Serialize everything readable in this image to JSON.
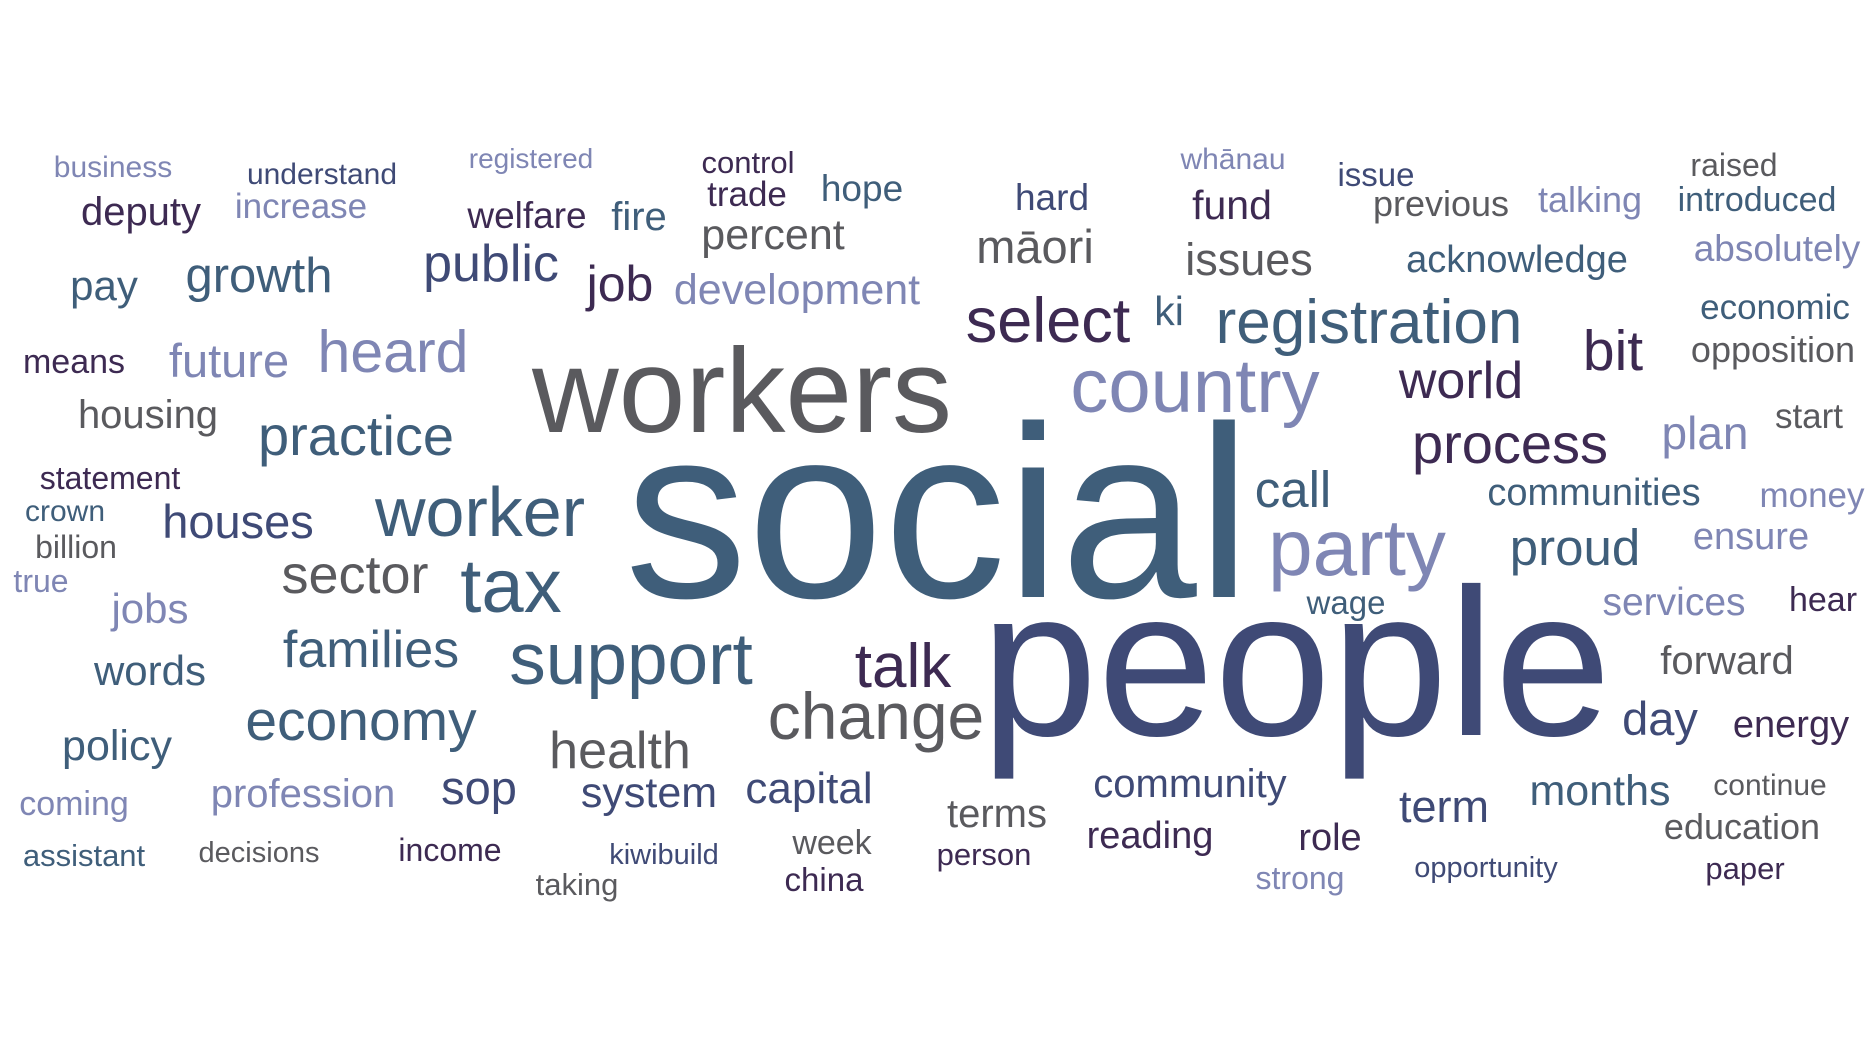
{
  "colors": {
    "dark_purple": "#3d2a52",
    "navy": "#3f4a76",
    "slate_blue": "#3f5e7a",
    "gray": "#5a5a5e",
    "lavender": "#7f86b4"
  },
  "words": [
    {
      "text": "social",
      "weight": 100,
      "color": "slate_blue"
    },
    {
      "text": "people",
      "weight": 96,
      "color": "navy"
    },
    {
      "text": "workers",
      "weight": 65,
      "color": "gray"
    },
    {
      "text": "party",
      "weight": 43,
      "color": "lavender"
    },
    {
      "text": "country",
      "weight": 40,
      "color": "lavender"
    },
    {
      "text": "support",
      "weight": 38,
      "color": "slate_blue"
    },
    {
      "text": "worker",
      "weight": 37,
      "color": "slate_blue"
    },
    {
      "text": "change",
      "weight": 36,
      "color": "gray"
    },
    {
      "text": "tax",
      "weight": 36,
      "color": "slate_blue"
    },
    {
      "text": "registration",
      "weight": 34,
      "color": "slate_blue"
    },
    {
      "text": "select",
      "weight": 34,
      "color": "dark_purple"
    },
    {
      "text": "talk",
      "weight": 33,
      "color": "dark_purple"
    },
    {
      "text": "economy",
      "weight": 31,
      "color": "slate_blue"
    },
    {
      "text": "process",
      "weight": 31,
      "color": "dark_purple"
    },
    {
      "text": "heard",
      "weight": 31,
      "color": "lavender"
    },
    {
      "text": "practice",
      "weight": 30,
      "color": "slate_blue"
    },
    {
      "text": "bit",
      "weight": 30,
      "color": "dark_purple"
    },
    {
      "text": "sector",
      "weight": 29,
      "color": "gray"
    },
    {
      "text": "families",
      "weight": 29,
      "color": "slate_blue"
    },
    {
      "text": "public",
      "weight": 29,
      "color": "navy"
    },
    {
      "text": "world",
      "weight": 29,
      "color": "dark_purple"
    },
    {
      "text": "health",
      "weight": 28,
      "color": "gray"
    },
    {
      "text": "proud",
      "weight": 28,
      "color": "slate_blue"
    },
    {
      "text": "call",
      "weight": 28,
      "color": "slate_blue"
    },
    {
      "text": "growth",
      "weight": 27,
      "color": "slate_blue"
    },
    {
      "text": "job",
      "weight": 27,
      "color": "dark_purple"
    },
    {
      "text": "houses",
      "weight": 27,
      "color": "navy"
    },
    {
      "text": "sop",
      "weight": 27,
      "color": "navy"
    },
    {
      "text": "māori",
      "weight": 26,
      "color": "gray"
    },
    {
      "text": "day",
      "weight": 26,
      "color": "navy"
    },
    {
      "text": "future",
      "weight": 26,
      "color": "lavender"
    },
    {
      "text": "plan",
      "weight": 26,
      "color": "lavender"
    },
    {
      "text": "capital",
      "weight": 25,
      "color": "navy"
    },
    {
      "text": "issues",
      "weight": 25,
      "color": "gray"
    },
    {
      "text": "system",
      "weight": 25,
      "color": "navy"
    },
    {
      "text": "term",
      "weight": 25,
      "color": "navy"
    },
    {
      "text": "months",
      "weight": 25,
      "color": "slate_blue"
    },
    {
      "text": "development",
      "weight": 24,
      "color": "lavender"
    },
    {
      "text": "percent",
      "weight": 24,
      "color": "gray"
    },
    {
      "text": "policy",
      "weight": 24,
      "color": "slate_blue"
    },
    {
      "text": "jobs",
      "weight": 24,
      "color": "lavender"
    },
    {
      "text": "pay",
      "weight": 24,
      "color": "slate_blue"
    },
    {
      "text": "words",
      "weight": 24,
      "color": "slate_blue"
    },
    {
      "text": "housing",
      "weight": 23,
      "color": "gray"
    },
    {
      "text": "community",
      "weight": 23,
      "color": "navy"
    },
    {
      "text": "profession",
      "weight": 23,
      "color": "lavender"
    },
    {
      "text": "forward",
      "weight": 23,
      "color": "gray"
    },
    {
      "text": "terms",
      "weight": 23,
      "color": "gray"
    },
    {
      "text": "fund",
      "weight": 23,
      "color": "dark_purple"
    },
    {
      "text": "acknowledge",
      "weight": 23,
      "color": "slate_blue"
    },
    {
      "text": "services",
      "weight": 23,
      "color": "lavender"
    },
    {
      "text": "fire",
      "weight": 23,
      "color": "slate_blue"
    },
    {
      "text": "deputy",
      "weight": 23,
      "color": "dark_purple"
    },
    {
      "text": "role",
      "weight": 22,
      "color": "dark_purple"
    },
    {
      "text": "reading",
      "weight": 22,
      "color": "dark_purple"
    },
    {
      "text": "hard",
      "weight": 22,
      "color": "navy"
    },
    {
      "text": "communities",
      "weight": 22,
      "color": "slate_blue"
    },
    {
      "text": "energy",
      "weight": 22,
      "color": "dark_purple"
    },
    {
      "text": "ensure",
      "weight": 22,
      "color": "lavender"
    },
    {
      "text": "welfare",
      "weight": 22,
      "color": "dark_purple"
    },
    {
      "text": "absolutely",
      "weight": 22,
      "color": "lavender"
    },
    {
      "text": "ki",
      "weight": 22,
      "color": "slate_blue"
    },
    {
      "text": "hope",
      "weight": 21,
      "color": "slate_blue"
    },
    {
      "text": "education",
      "weight": 21,
      "color": "gray"
    },
    {
      "text": "economic",
      "weight": 21,
      "color": "slate_blue"
    },
    {
      "text": "opposition",
      "weight": 21,
      "color": "gray"
    },
    {
      "text": "trade",
      "weight": 21,
      "color": "dark_purple"
    },
    {
      "text": "start",
      "weight": 21,
      "color": "gray"
    },
    {
      "text": "previous",
      "weight": 21,
      "color": "gray"
    },
    {
      "text": "talking",
      "weight": 21,
      "color": "lavender"
    },
    {
      "text": "increase",
      "weight": 21,
      "color": "lavender"
    },
    {
      "text": "means",
      "weight": 20,
      "color": "dark_purple"
    },
    {
      "text": "week",
      "weight": 20,
      "color": "gray"
    },
    {
      "text": "introduced",
      "weight": 20,
      "color": "slate_blue"
    },
    {
      "text": "money",
      "weight": 20,
      "color": "lavender"
    },
    {
      "text": "coming",
      "weight": 20,
      "color": "lavender"
    },
    {
      "text": "hear",
      "weight": 20,
      "color": "dark_purple"
    },
    {
      "text": "income",
      "weight": 20,
      "color": "dark_purple"
    },
    {
      "text": "china",
      "weight": 20,
      "color": "dark_purple"
    },
    {
      "text": "taking",
      "weight": 20,
      "color": "gray"
    },
    {
      "text": "statement",
      "weight": 19,
      "color": "dark_purple"
    },
    {
      "text": "billion",
      "weight": 19,
      "color": "gray"
    },
    {
      "text": "wage",
      "weight": 19,
      "color": "slate_blue"
    },
    {
      "text": "assistant",
      "weight": 19,
      "color": "slate_blue"
    },
    {
      "text": "person",
      "weight": 19,
      "color": "dark_purple"
    },
    {
      "text": "paper",
      "weight": 19,
      "color": "dark_purple"
    },
    {
      "text": "strong",
      "weight": 19,
      "color": "lavender"
    },
    {
      "text": "issue",
      "weight": 19,
      "color": "navy"
    },
    {
      "text": "raised",
      "weight": 19,
      "color": "gray"
    },
    {
      "text": "control",
      "weight": 19,
      "color": "dark_purple"
    },
    {
      "text": "continue",
      "weight": 19,
      "color": "gray"
    },
    {
      "text": "understand",
      "weight": 18,
      "color": "navy"
    },
    {
      "text": "decisions",
      "weight": 18,
      "color": "gray"
    },
    {
      "text": "kiwibuild",
      "weight": 18,
      "color": "navy"
    },
    {
      "text": "opportunity",
      "weight": 18,
      "color": "navy"
    },
    {
      "text": "business",
      "weight": 18,
      "color": "lavender"
    },
    {
      "text": "crown",
      "weight": 18,
      "color": "slate_blue"
    },
    {
      "text": "true",
      "weight": 18,
      "color": "lavender"
    },
    {
      "text": "whānau",
      "weight": 18,
      "color": "lavender"
    },
    {
      "text": "registered",
      "weight": 17,
      "color": "lavender"
    }
  ]
}
